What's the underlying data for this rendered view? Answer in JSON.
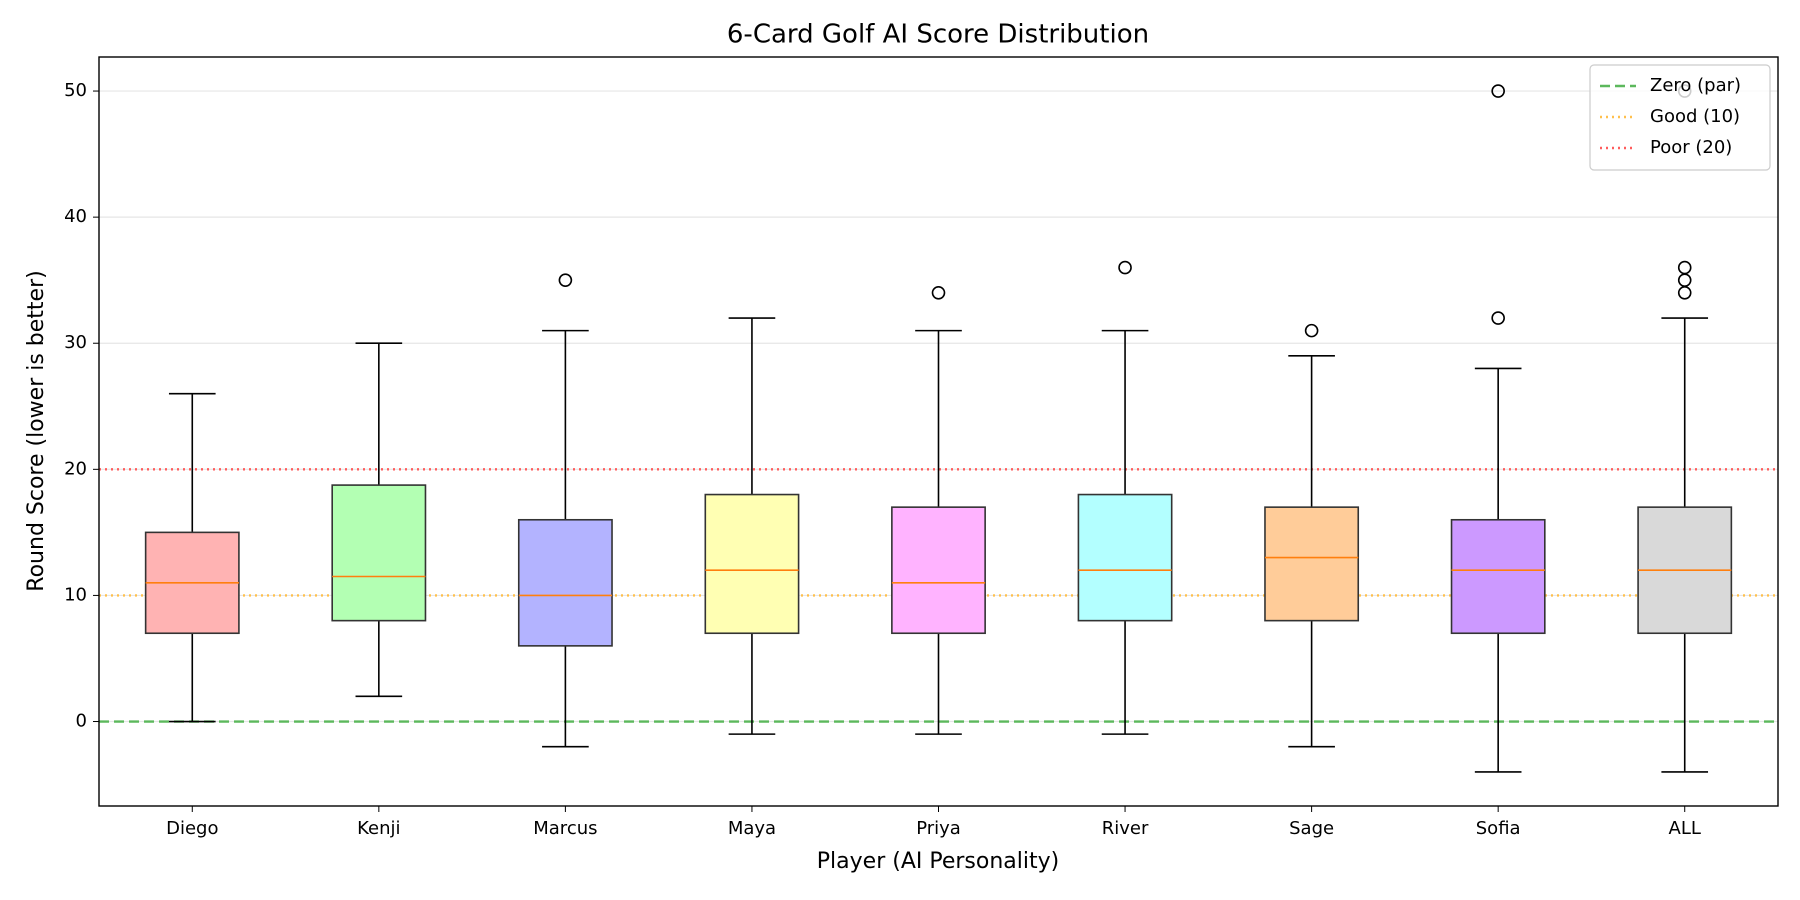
{
  "chart_data": {
    "type": "box",
    "title": "6-Card Golf AI Score Distribution",
    "x_label": "Player (AI Personality)",
    "y_label": "Round Score (lower is better)",
    "categories": [
      "Diego",
      "Kenji",
      "Marcus",
      "Maya",
      "Priya",
      "River",
      "Sage",
      "Sofia",
      "ALL"
    ],
    "boxes": [
      {
        "whislo": 0,
        "q1": 7,
        "med": 11,
        "q3": 15,
        "whishi": 26,
        "fliers": []
      },
      {
        "whislo": 2,
        "q1": 8,
        "med": 11.5,
        "q3": 18.75,
        "whishi": 30,
        "fliers": []
      },
      {
        "whislo": -2,
        "q1": 6,
        "med": 10,
        "q3": 16,
        "whishi": 31,
        "fliers": [
          35
        ]
      },
      {
        "whislo": -1,
        "q1": 7,
        "med": 12,
        "q3": 18,
        "whishi": 32,
        "fliers": []
      },
      {
        "whislo": -1,
        "q1": 7,
        "med": 11,
        "q3": 17,
        "whishi": 31,
        "fliers": [
          34
        ]
      },
      {
        "whislo": -1,
        "q1": 8,
        "med": 12,
        "q3": 18,
        "whishi": 31,
        "fliers": [
          36
        ]
      },
      {
        "whislo": -2,
        "q1": 8,
        "med": 13,
        "q3": 17,
        "whishi": 29,
        "fliers": [
          31
        ]
      },
      {
        "whislo": -4,
        "q1": 7,
        "med": 12,
        "q3": 16,
        "whishi": 28,
        "fliers": [
          32,
          50
        ]
      },
      {
        "whislo": -4,
        "q1": 7,
        "med": 12,
        "q3": 17,
        "whishi": 32,
        "fliers": [
          34,
          35,
          36,
          50
        ]
      }
    ],
    "colors": [
      "#ffb3b3",
      "#b3ffb3",
      "#b3b3ff",
      "#ffffb3",
      "#ffb3ff",
      "#b3ffff",
      "#ffcc99",
      "#cc99ff",
      "#d9d9d9"
    ],
    "median_color": "#ff7f0e",
    "reference_lines": [
      {
        "name": "Zero (par)",
        "value": 0,
        "color": "#5cb85c",
        "style": "dashed"
      },
      {
        "name": "Good (10)",
        "value": 10,
        "color": "#ffc04d",
        "style": "dotted"
      },
      {
        "name": "Poor (20)",
        "value": 20,
        "color": "#ff5c5c",
        "style": "dotted"
      }
    ],
    "ylim": [
      -6.7,
      52.7
    ],
    "yticks": [
      0,
      10,
      20,
      30,
      40,
      50
    ],
    "grid": true,
    "legend": "upper right"
  }
}
